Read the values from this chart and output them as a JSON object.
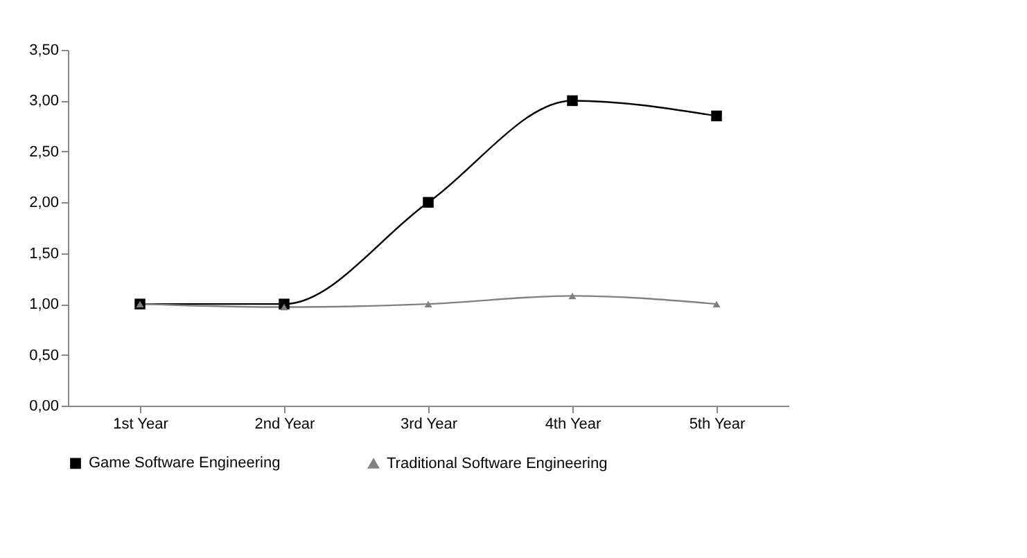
{
  "chart_data": {
    "type": "line",
    "categories": [
      "1st Year",
      "2nd Year",
      "3rd Year",
      "4th Year",
      "5th Year"
    ],
    "series": [
      {
        "name": "Game Software Engineering",
        "color": "#000000",
        "marker": "square",
        "values": [
          1.0,
          1.0,
          2.0,
          3.0,
          2.85
        ]
      },
      {
        "name": "Traditional Software Engineering",
        "color": "#808080",
        "marker": "triangle",
        "values": [
          1.0,
          0.97,
          1.0,
          1.08,
          1.0
        ]
      }
    ],
    "ylim": [
      0,
      3.5
    ],
    "yticks": [
      {
        "value": 0,
        "label": "0,00"
      },
      {
        "value": 0.5,
        "label": "0,50"
      },
      {
        "value": 1,
        "label": "1,00"
      },
      {
        "value": 1.5,
        "label": "1,50"
      },
      {
        "value": 2,
        "label": "2,00"
      },
      {
        "value": 2.5,
        "label": "2,50"
      },
      {
        "value": 3,
        "label": "3,00"
      },
      {
        "value": 3.5,
        "label": "3,50"
      }
    ],
    "grid": false,
    "legend": "bottom",
    "line_style": "solid"
  }
}
